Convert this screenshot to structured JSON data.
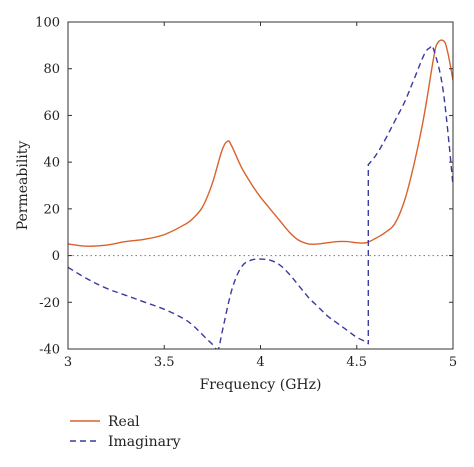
{
  "chart_data": {
    "type": "line",
    "title": "",
    "xlabel": "Frequency (GHz)",
    "ylabel": "Permeability",
    "xlim": [
      3,
      5
    ],
    "ylim": [
      -40,
      100
    ],
    "xticks": [
      3,
      3.5,
      4,
      4.5,
      5
    ],
    "xtick_labels": [
      "3",
      "3.5",
      "4",
      "4.5",
      "5"
    ],
    "yticks": [
      -40,
      -20,
      0,
      20,
      40,
      60,
      80,
      100
    ],
    "ytick_labels": [
      "-40",
      "-20",
      "0",
      "20",
      "40",
      "60",
      "80",
      "100"
    ],
    "grid": false,
    "legend_position": "bottom-left",
    "zero_line": {
      "y": 0,
      "style": "dotted",
      "color": "#888888"
    },
    "series": [
      {
        "name": "Real",
        "color": "#d9622b",
        "style": "solid",
        "x": [
          3.0,
          3.1,
          3.2,
          3.3,
          3.4,
          3.5,
          3.6,
          3.65,
          3.7,
          3.75,
          3.8,
          3.83,
          3.85,
          3.9,
          3.95,
          4.0,
          4.05,
          4.1,
          4.15,
          4.2,
          4.25,
          4.3,
          4.35,
          4.4,
          4.45,
          4.5,
          4.55,
          4.6,
          4.65,
          4.7,
          4.75,
          4.8,
          4.85,
          4.9,
          4.92,
          4.95,
          4.97,
          5.0
        ],
        "y": [
          5,
          4,
          4.5,
          6,
          7,
          9,
          13,
          16,
          21,
          31,
          45,
          49,
          47,
          38,
          31,
          25,
          20,
          15,
          10,
          6.5,
          5,
          5,
          5.5,
          6,
          6,
          5.5,
          5.5,
          7.5,
          10,
          14,
          24,
          40,
          60,
          85,
          91,
          92,
          88,
          75
        ]
      },
      {
        "name": "Imaginary",
        "color": "#3a3aa0",
        "style": "dashed",
        "x": [
          3.0,
          3.1,
          3.2,
          3.3,
          3.4,
          3.5,
          3.6,
          3.65,
          3.7,
          3.75,
          3.78,
          3.8,
          3.85,
          3.9,
          3.95,
          4.0,
          4.05,
          4.1,
          4.15,
          4.2,
          4.25,
          4.3,
          4.35,
          4.4,
          4.45,
          4.5,
          4.55,
          4.56,
          4.56,
          4.6,
          4.65,
          4.7,
          4.75,
          4.8,
          4.85,
          4.88,
          4.9,
          4.95,
          5.0
        ],
        "y": [
          -5,
          -10,
          -14,
          -17,
          -20,
          -23,
          -27,
          -30,
          -34,
          -38,
          -40,
          -33,
          -15,
          -5,
          -2,
          -1.5,
          -2,
          -4,
          -8,
          -13,
          -18,
          -22,
          -26,
          -29,
          -32,
          -35,
          -37,
          -38,
          39,
          43,
          50,
          58,
          66,
          76,
          86,
          89,
          88,
          70,
          30
        ]
      }
    ]
  }
}
